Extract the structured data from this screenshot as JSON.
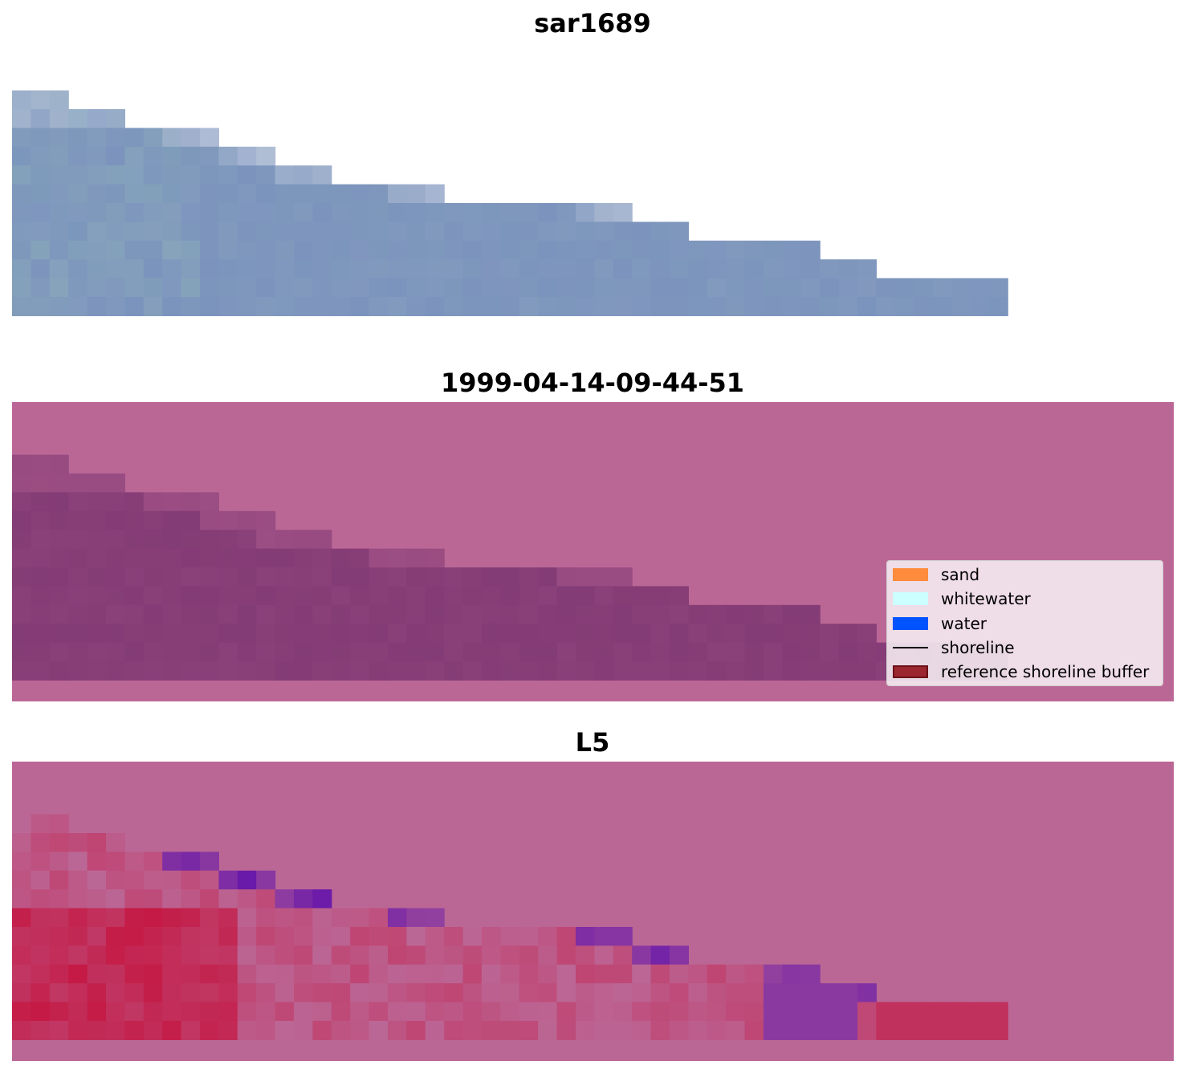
{
  "panels": [
    {
      "id": "rgb",
      "title": "sar1689"
    },
    {
      "id": "classified",
      "title": "1999-04-14-09-44-51"
    },
    {
      "id": "index",
      "title": "L5"
    }
  ],
  "legend": {
    "items": [
      {
        "label": "sand",
        "color": "#ff8c3c",
        "kind": "patch"
      },
      {
        "label": "whitewater",
        "color": "#ccffff",
        "kind": "patch"
      },
      {
        "label": "water",
        "color": "#0054ff",
        "kind": "patch"
      },
      {
        "label": "shoreline",
        "color": "#000000",
        "kind": "line"
      },
      {
        "label": "reference shoreline buffer",
        "color": "#9b2630",
        "kind": "patch"
      }
    ]
  },
  "colors": {
    "nodata_rgb": "#ffffff",
    "nodata_overlay": "#bb6796",
    "classified_land": "#8a4078",
    "index_red": "#c41a45",
    "index_purple": "#6a1aa8"
  }
}
